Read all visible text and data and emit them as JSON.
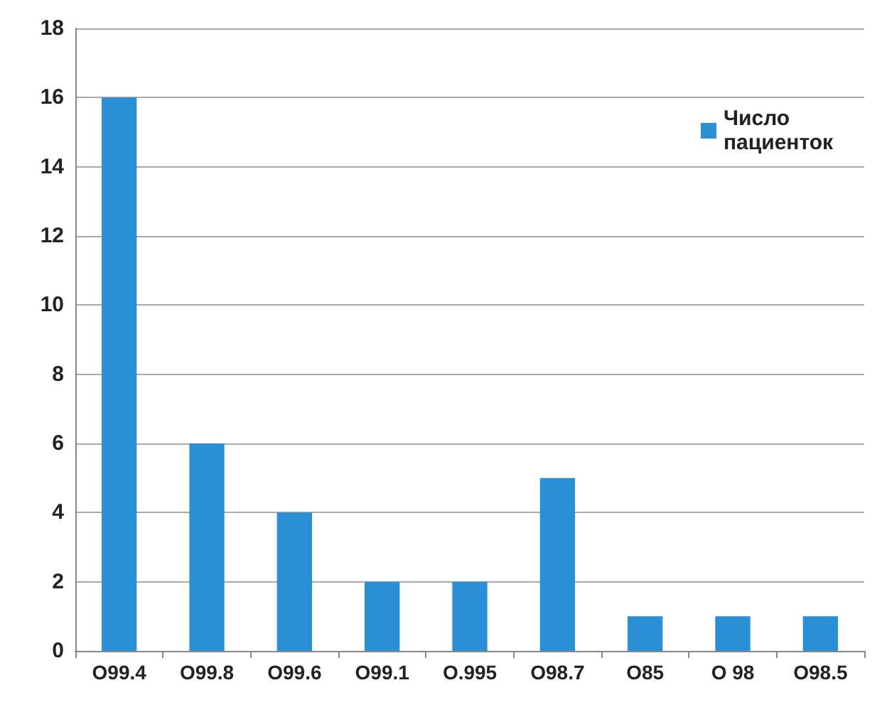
{
  "chart_data": {
    "type": "bar",
    "categories": [
      "O99.4",
      "O99.8",
      "O99.6",
      "O99.1",
      "O.995",
      "O98.7",
      "O85",
      "O 98",
      "O98.5"
    ],
    "series": [
      {
        "name": "Число пациенток",
        "color": "#2a8fd4",
        "values": [
          16,
          6,
          4,
          2,
          2,
          5,
          1,
          1,
          1
        ]
      }
    ],
    "ylim": [
      0,
      18
    ],
    "yticks": [
      0,
      2,
      4,
      6,
      8,
      10,
      12,
      14,
      16,
      18
    ],
    "grid": "y",
    "legend": "top right"
  }
}
